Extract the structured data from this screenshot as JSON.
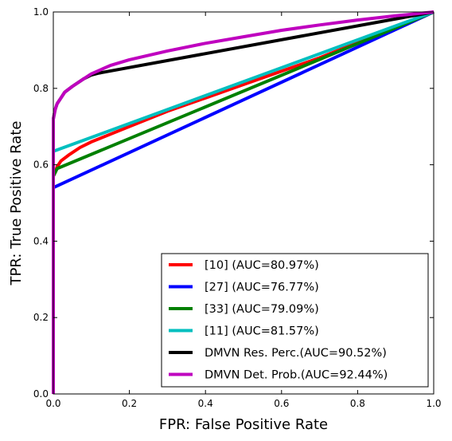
{
  "chart_data": {
    "type": "line",
    "title": "",
    "xlabel": "FPR: False Positive Rate",
    "ylabel": "TPR: True Positive Rate",
    "xlim": [
      0.0,
      1.0
    ],
    "ylim": [
      0.0,
      1.0
    ],
    "xticks": [
      "0.0",
      "0.2",
      "0.4",
      "0.6",
      "0.8",
      "1.0"
    ],
    "yticks": [
      "0.0",
      "0.2",
      "0.4",
      "0.6",
      "0.8",
      "1.0"
    ],
    "grid": false,
    "legend_position": "lower-right",
    "series": [
      {
        "name": "[10] (AUC=80.97%)",
        "color": "#ff0000",
        "x": [
          0.0,
          0.0,
          0.005,
          0.01,
          0.02,
          0.04,
          0.07,
          0.1,
          0.15,
          0.2,
          0.3,
          0.4,
          0.5,
          0.6,
          0.7,
          0.8,
          0.9,
          1.0
        ],
        "y": [
          0.0,
          0.57,
          0.58,
          0.595,
          0.61,
          0.625,
          0.645,
          0.66,
          0.68,
          0.7,
          0.74,
          0.775,
          0.81,
          0.845,
          0.88,
          0.92,
          0.96,
          1.0
        ]
      },
      {
        "name": "[27] (AUC=76.77%)",
        "color": "#0000ff",
        "x": [
          0.0,
          0.0,
          1.0
        ],
        "y": [
          0.0,
          0.54,
          1.0
        ]
      },
      {
        "name": "[33] (AUC=79.09%)",
        "color": "#008000",
        "x": [
          0.0,
          0.0,
          0.005,
          0.01,
          1.0
        ],
        "y": [
          0.0,
          0.57,
          0.58,
          0.59,
          1.0
        ]
      },
      {
        "name": "[11] (AUC=81.57%)",
        "color": "#00bfbf",
        "x": [
          0.0,
          0.0,
          1.0
        ],
        "y": [
          0.0,
          0.635,
          1.0
        ]
      },
      {
        "name": "DMVN Res. Perc.(AUC=90.52%)",
        "color": "#000000",
        "x": [
          0.0,
          0.0,
          0.005,
          0.01,
          0.02,
          0.03,
          0.05,
          0.08,
          0.1,
          0.12,
          1.0
        ],
        "y": [
          0.0,
          0.72,
          0.745,
          0.76,
          0.775,
          0.79,
          0.805,
          0.825,
          0.835,
          0.84,
          1.0
        ]
      },
      {
        "name": "DMVN Det. Prob.(AUC=92.44%)",
        "color": "#bf00bf",
        "x": [
          0.0,
          0.0,
          0.005,
          0.01,
          0.02,
          0.03,
          0.05,
          0.08,
          0.1,
          0.15,
          0.2,
          0.3,
          0.4,
          0.5,
          0.6,
          0.7,
          0.8,
          0.9,
          1.0
        ],
        "y": [
          0.0,
          0.72,
          0.745,
          0.76,
          0.775,
          0.79,
          0.805,
          0.825,
          0.838,
          0.86,
          0.875,
          0.898,
          0.918,
          0.935,
          0.952,
          0.966,
          0.979,
          0.99,
          1.0
        ]
      }
    ]
  }
}
